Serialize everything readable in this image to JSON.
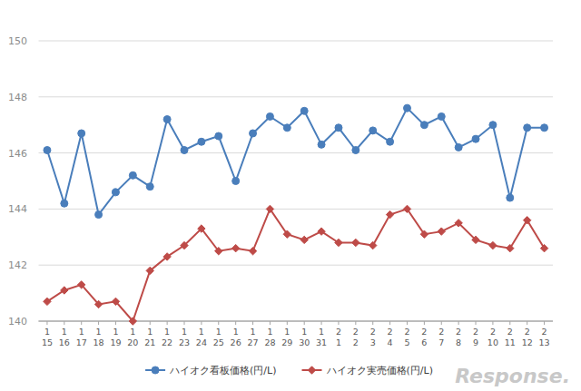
{
  "chart_data": {
    "type": "line",
    "categories": [
      "1\n15",
      "1\n16",
      "1\n17",
      "1\n18",
      "1\n19",
      "1\n20",
      "1\n21",
      "1\n22",
      "1\n23",
      "1\n24",
      "1\n25",
      "1\n26",
      "1\n27",
      "1\n28",
      "1\n29",
      "1\n30",
      "1\n31",
      "2\n1",
      "2\n2",
      "2\n3",
      "2\n4",
      "2\n5",
      "2\n6",
      "2\n7",
      "2\n8",
      "2\n9",
      "2\n10",
      "2\n11",
      "2\n12",
      "2\n13"
    ],
    "series": [
      {
        "name": "ハイオク看板価格(円/L)",
        "color": "#4a7ebb",
        "marker": "circle",
        "values": [
          146.1,
          144.2,
          146.7,
          143.8,
          144.6,
          145.2,
          144.8,
          147.2,
          146.1,
          146.4,
          146.6,
          145.0,
          146.7,
          147.3,
          146.9,
          147.5,
          146.3,
          146.9,
          146.1,
          146.8,
          146.4,
          147.6,
          147.0,
          147.3,
          146.2,
          146.5,
          147.0,
          144.4,
          146.9,
          146.9
        ]
      },
      {
        "name": "ハイオク実売価格(円/L)",
        "color": "#be4b48",
        "marker": "diamond",
        "values": [
          140.7,
          141.1,
          141.3,
          140.6,
          140.7,
          140.0,
          141.8,
          142.3,
          142.7,
          143.3,
          142.5,
          142.6,
          142.5,
          144.0,
          143.1,
          142.9,
          143.2,
          142.8,
          142.8,
          142.7,
          143.8,
          144.0,
          143.1,
          143.2,
          143.5,
          142.9,
          142.7,
          142.6,
          143.6,
          142.6
        ]
      }
    ],
    "ylim": [
      140,
      150
    ],
    "yticks": [
      140,
      142,
      144,
      146,
      148,
      150
    ],
    "grid": true,
    "legend": "bottom",
    "annotations": [
      "Response."
    ]
  }
}
